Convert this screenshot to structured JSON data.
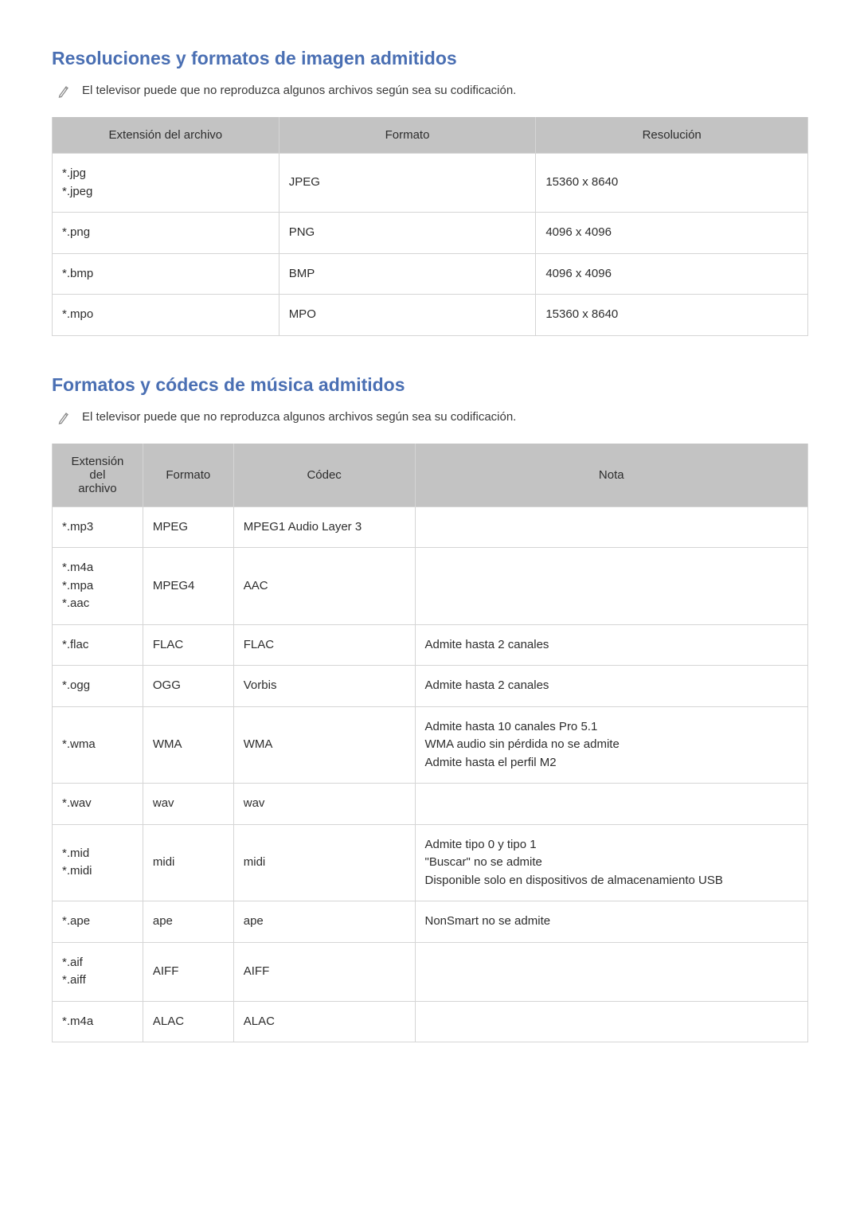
{
  "colors": {
    "heading": "#4a6fb3",
    "body_text": "#2d2d2d",
    "table_header_bg": "#c3c3c3",
    "table_border": "#d5d5d5",
    "note_icon": "#8a8a8a",
    "background": "#ffffff"
  },
  "typography": {
    "heading_fontsize": 23,
    "heading_weight": 600,
    "body_fontsize": 15
  },
  "section1": {
    "heading": "Resoluciones y formatos de imagen admitidos",
    "note": "El televisor puede que no reproduzca algunos archivos según sea su codificación.",
    "table": {
      "columns": [
        "Extensión del archivo",
        "Formato",
        "Resolución"
      ],
      "col_widths_pct": [
        30,
        34,
        36
      ],
      "rows": [
        {
          "ext": [
            "*.jpg",
            "*.jpeg"
          ],
          "format": "JPEG",
          "resolution": "15360 x 8640"
        },
        {
          "ext": [
            "*.png"
          ],
          "format": "PNG",
          "resolution": "4096 x 4096"
        },
        {
          "ext": [
            "*.bmp"
          ],
          "format": "BMP",
          "resolution": "4096 x 4096"
        },
        {
          "ext": [
            "*.mpo"
          ],
          "format": "MPO",
          "resolution": "15360 x 8640"
        }
      ]
    }
  },
  "section2": {
    "heading": "Formatos y códecs de música admitidos",
    "note": "El televisor puede que no reproduzca algunos archivos según sea su codificación.",
    "table": {
      "columns": [
        "Extensión del archivo",
        "Formato",
        "Códec",
        "Nota"
      ],
      "col_widths_pct": [
        12,
        12,
        24,
        52
      ],
      "rows": [
        {
          "ext": [
            "*.mp3"
          ],
          "format": "MPEG",
          "codec": "MPEG1 Audio Layer 3",
          "note": []
        },
        {
          "ext": [
            "*.m4a",
            "*.mpa",
            "*.aac"
          ],
          "format": "MPEG4",
          "codec": "AAC",
          "note": []
        },
        {
          "ext": [
            "*.flac"
          ],
          "format": "FLAC",
          "codec": "FLAC",
          "note": [
            "Admite hasta 2 canales"
          ]
        },
        {
          "ext": [
            "*.ogg"
          ],
          "format": "OGG",
          "codec": "Vorbis",
          "note": [
            "Admite hasta 2 canales"
          ]
        },
        {
          "ext": [
            "*.wma"
          ],
          "format": "WMA",
          "codec": "WMA",
          "note": [
            "Admite hasta 10 canales Pro 5.1",
            "WMA audio sin pérdida no se admite",
            "Admite hasta el perfil M2"
          ]
        },
        {
          "ext": [
            "*.wav"
          ],
          "format": "wav",
          "codec": "wav",
          "note": []
        },
        {
          "ext": [
            "*.mid",
            "*.midi"
          ],
          "format": "midi",
          "codec": "midi",
          "note": [
            "Admite tipo 0 y tipo 1",
            "\"Buscar\" no se admite",
            "Disponible solo en dispositivos de almacenamiento USB"
          ]
        },
        {
          "ext": [
            "*.ape"
          ],
          "format": "ape",
          "codec": "ape",
          "note": [
            "NonSmart no se admite"
          ]
        },
        {
          "ext": [
            "*.aif",
            "*.aiff"
          ],
          "format": "AIFF",
          "codec": "AIFF",
          "note": []
        },
        {
          "ext": [
            "*.m4a"
          ],
          "format": "ALAC",
          "codec": "ALAC",
          "note": []
        }
      ]
    }
  }
}
